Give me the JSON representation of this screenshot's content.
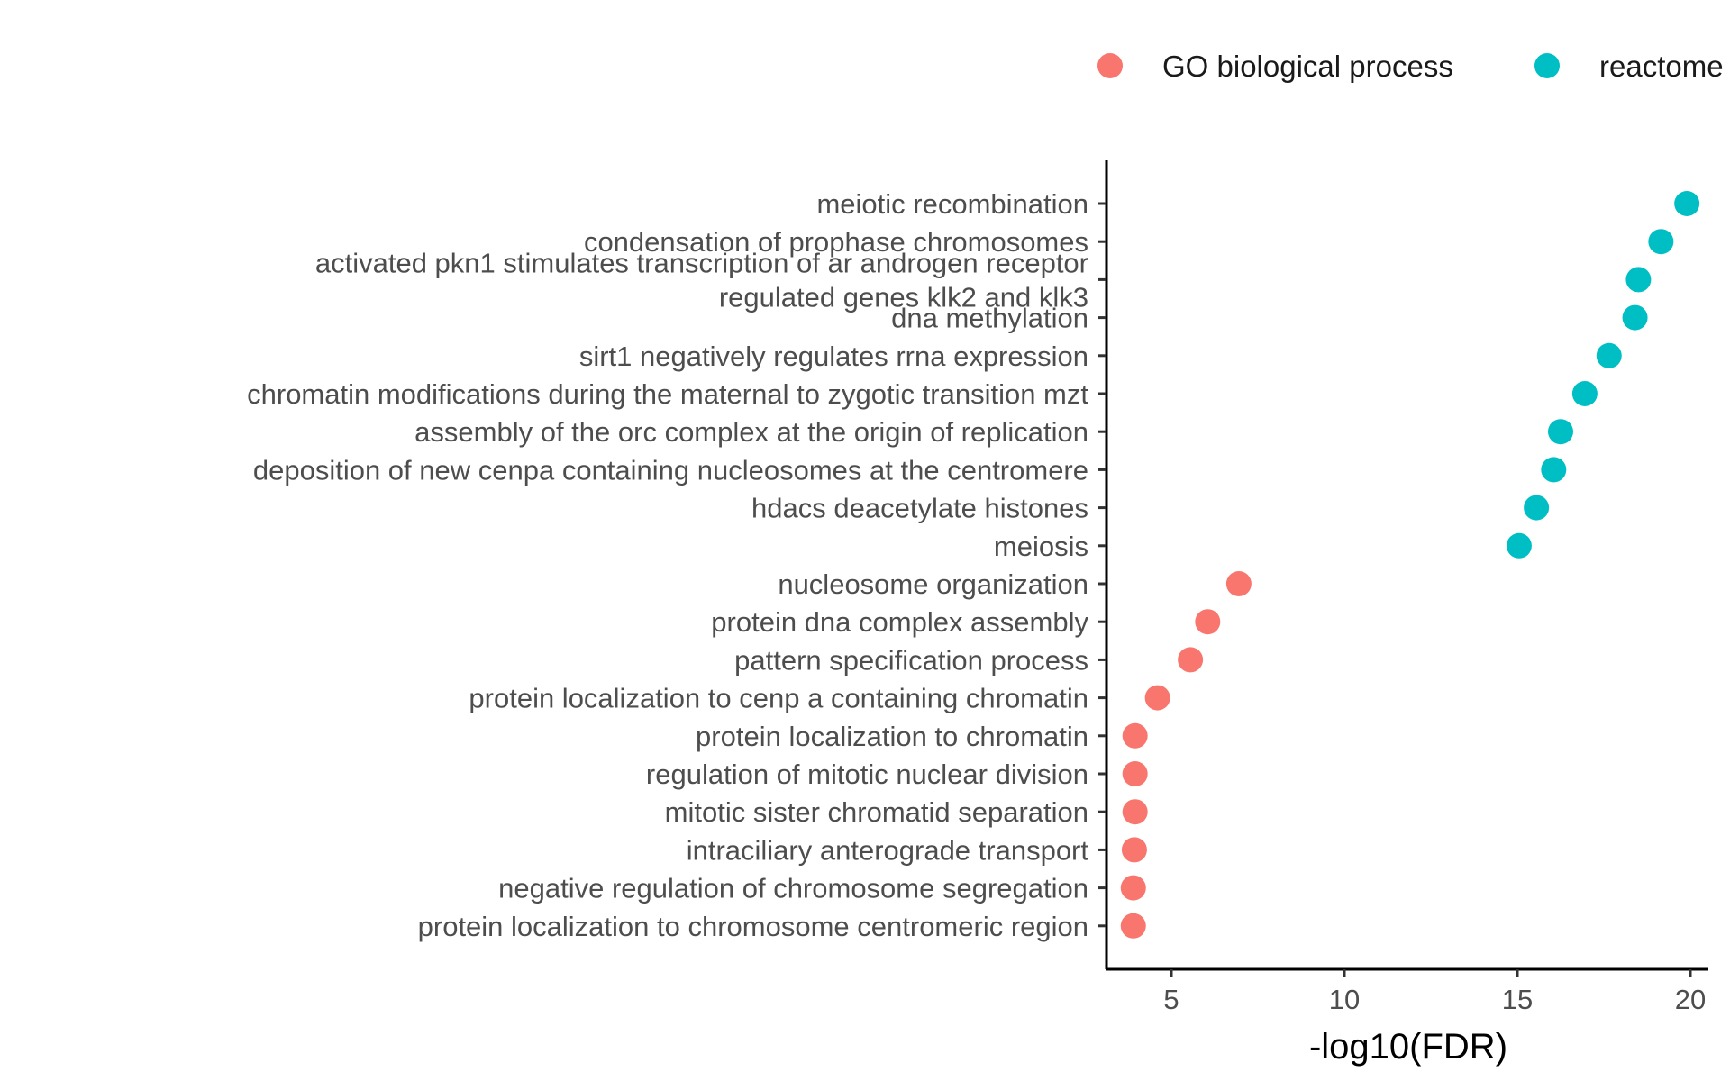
{
  "chart_data": {
    "type": "scatter",
    "xlabel": "-log10(FDR)",
    "ylabel": "",
    "title": "",
    "xlim": [
      3.1,
      20.6
    ],
    "x_ticks": [
      5,
      10,
      15,
      20
    ],
    "grid": false,
    "legend_position": "top-right",
    "legend": [
      {
        "name": "GO biological process",
        "color": "#F8766D"
      },
      {
        "name": "reactome",
        "color": "#00BFC4"
      }
    ],
    "points": [
      {
        "label": "meiotic recombination",
        "x": 19.9,
        "group": "reactome"
      },
      {
        "label": "condensation of prophase chromosomes",
        "x": 19.15,
        "group": "reactome"
      },
      {
        "label": "activated pkn1 stimulates transcription of ar androgen receptor\nregulated genes klk2 and klk3",
        "x": 18.5,
        "group": "reactome"
      },
      {
        "label": "dna methylation",
        "x": 18.4,
        "group": "reactome"
      },
      {
        "label": "sirt1 negatively regulates rrna expression",
        "x": 17.65,
        "group": "reactome"
      },
      {
        "label": "chromatin modifications during the maternal to zygotic transition mzt",
        "x": 16.95,
        "group": "reactome"
      },
      {
        "label": "assembly of the orc complex at the origin of replication",
        "x": 16.25,
        "group": "reactome"
      },
      {
        "label": "deposition of new cenpa containing nucleosomes at the centromere",
        "x": 16.05,
        "group": "reactome"
      },
      {
        "label": "hdacs deacetylate histones",
        "x": 15.55,
        "group": "reactome"
      },
      {
        "label": "meiosis",
        "x": 15.05,
        "group": "reactome"
      },
      {
        "label": "nucleosome organization",
        "x": 6.95,
        "group": "GO biological process"
      },
      {
        "label": "protein dna complex assembly",
        "x": 6.05,
        "group": "GO biological process"
      },
      {
        "label": "pattern specification process",
        "x": 5.55,
        "group": "GO biological process"
      },
      {
        "label": "protein localization to cenp a containing chromatin",
        "x": 4.6,
        "group": "GO biological process"
      },
      {
        "label": "protein localization to chromatin",
        "x": 3.95,
        "group": "GO biological process"
      },
      {
        "label": "regulation of mitotic nuclear division",
        "x": 3.95,
        "group": "GO biological process"
      },
      {
        "label": "mitotic sister chromatid separation",
        "x": 3.95,
        "group": "GO biological process"
      },
      {
        "label": "intraciliary anterograde transport",
        "x": 3.93,
        "group": "GO biological process"
      },
      {
        "label": "negative regulation of chromosome segregation",
        "x": 3.9,
        "group": "GO biological process"
      },
      {
        "label": "protein localization to chromosome centromeric region",
        "x": 3.9,
        "group": "GO biological process"
      }
    ]
  }
}
